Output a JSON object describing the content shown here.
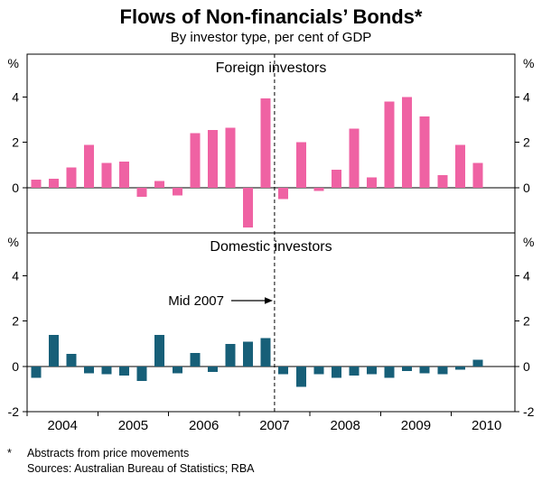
{
  "title": "Flows of Non-financials’ Bonds*",
  "subtitle": "By investor type, per cent of GDP",
  "panels": {
    "top_label": "Foreign investors",
    "bottom_label": "Domestic investors"
  },
  "annotation": {
    "text": "Mid 2007",
    "year": 2007.5
  },
  "axis": {
    "unit": "%",
    "x_start": 2004.0,
    "x_end": 2010.9,
    "years": [
      "2004",
      "2005",
      "2006",
      "2007",
      "2008",
      "2009",
      "2010"
    ],
    "ylim": [
      -2,
      5.9
    ],
    "y_top_ticks": [
      4,
      2,
      0
    ],
    "y_bottom_ticks": [
      4,
      2,
      0,
      -2
    ]
  },
  "colors": {
    "foreign": "#ef62a3",
    "domestic": "#175f78"
  },
  "footnote": {
    "marker": "*",
    "text": "Abstracts from price movements",
    "sources": "Sources: Australian Bureau of Statistics; RBA"
  },
  "chart_data": [
    {
      "type": "bar",
      "title": "Foreign investors",
      "ylabel": "%",
      "ylim": [
        -2,
        5.9
      ],
      "yticks": [
        4,
        2,
        0
      ],
      "color": "#ef62a3",
      "categories": [
        "2004Q1",
        "2004Q2",
        "2004Q3",
        "2004Q4",
        "2005Q1",
        "2005Q2",
        "2005Q3",
        "2005Q4",
        "2006Q1",
        "2006Q2",
        "2006Q3",
        "2006Q4",
        "2007Q1",
        "2007Q2",
        "2007Q3",
        "2007Q4",
        "2008Q1",
        "2008Q2",
        "2008Q3",
        "2008Q4",
        "2009Q1",
        "2009Q2",
        "2009Q3",
        "2009Q4",
        "2010Q1",
        "2010Q2"
      ],
      "values": [
        0.35,
        0.4,
        0.9,
        1.9,
        1.1,
        1.15,
        -0.4,
        0.3,
        -0.35,
        2.4,
        2.55,
        2.65,
        -1.75,
        3.95,
        -0.5,
        2.0,
        -0.15,
        0.8,
        2.6,
        0.45,
        3.8,
        4.0,
        3.15,
        0.55,
        1.9,
        1.1
      ]
    },
    {
      "type": "bar",
      "title": "Domestic investors",
      "ylabel": "%",
      "ylim": [
        -2,
        5.9
      ],
      "yticks": [
        4,
        2,
        0,
        -2
      ],
      "color": "#175f78",
      "categories": [
        "2004Q1",
        "2004Q2",
        "2004Q3",
        "2004Q4",
        "2005Q1",
        "2005Q2",
        "2005Q3",
        "2005Q4",
        "2006Q1",
        "2006Q2",
        "2006Q3",
        "2006Q4",
        "2007Q1",
        "2007Q2",
        "2007Q3",
        "2007Q4",
        "2008Q1",
        "2008Q2",
        "2008Q3",
        "2008Q4",
        "2009Q1",
        "2009Q2",
        "2009Q3",
        "2009Q4",
        "2010Q1",
        "2010Q2"
      ],
      "values": [
        -0.5,
        1.4,
        0.55,
        -0.3,
        -0.35,
        -0.4,
        -0.65,
        1.4,
        -0.3,
        0.6,
        -0.25,
        1.0,
        1.1,
        1.25,
        -0.35,
        -0.9,
        -0.35,
        -0.5,
        -0.4,
        -0.35,
        -0.5,
        -0.2,
        -0.3,
        -0.35,
        -0.15,
        0.3
      ]
    }
  ]
}
